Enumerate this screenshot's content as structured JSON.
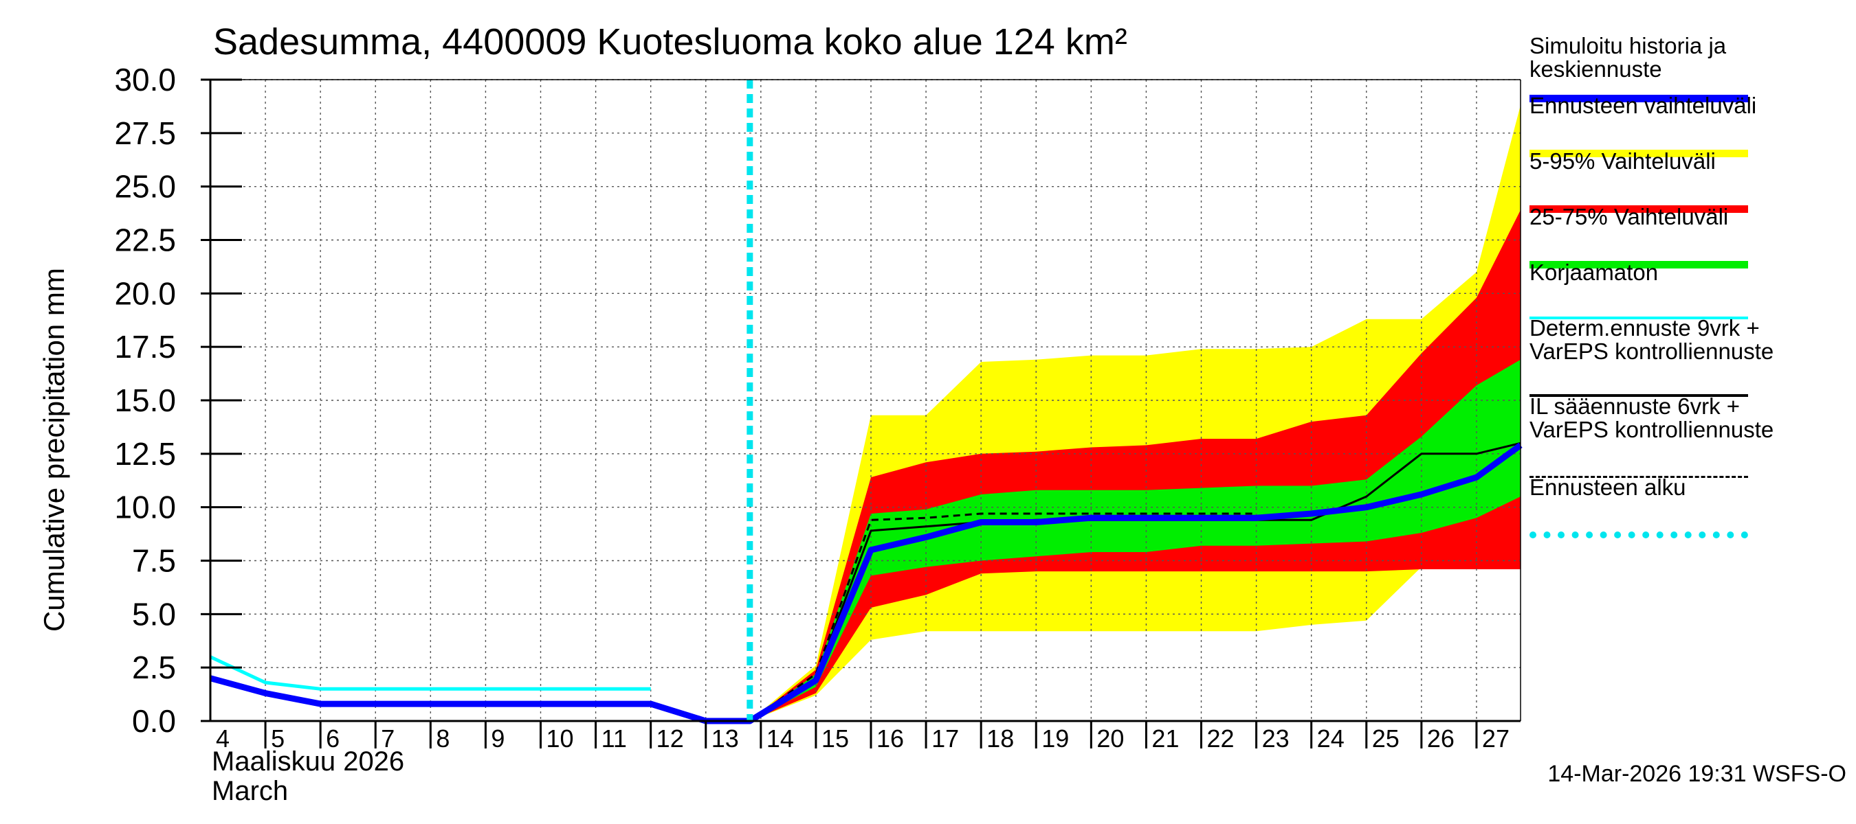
{
  "title": "Sadesumma, 4400009 Kuotesluoma koko alue 124 km²",
  "y_axis_label": "Cumulative precipitation   mm",
  "month_label_fi": "Maaliskuu 2026",
  "month_label_en": "March",
  "timestamp": "14-Mar-2026 19:31 WSFS-O",
  "colors": {
    "simulated": "#0000ff",
    "full_range": "#ffff00",
    "range_5_95": "#ff0000",
    "range_25_75": "#00ee00",
    "uncorrected": "#00ffff",
    "deterministic": "#000000",
    "forecast_start": "#00e5ee"
  },
  "legend": [
    {
      "label": "Simuloitu historia ja\nkeskiennuste",
      "style": "thick",
      "color": "#0000ff"
    },
    {
      "label": "Ennusteen vaihteluväli",
      "style": "thick",
      "color": "#ffff00"
    },
    {
      "label": "5-95% Vaihteluväli",
      "style": "thick",
      "color": "#ff0000"
    },
    {
      "label": "25-75% Vaihteluväli",
      "style": "thick",
      "color": "#00ee00"
    },
    {
      "label": "Korjaamaton",
      "style": "thin",
      "color": "#00ffff"
    },
    {
      "label": "Determ.ennuste 9vrk +\nVarEPS kontrolliennuste",
      "style": "thin",
      "color": "#000000"
    },
    {
      "label": "IL sääennuste 6vrk  +\nVarEPS kontrolliennuste",
      "style": "dashed",
      "color": "#000000"
    },
    {
      "label": "Ennusteen alku",
      "style": "dotted-thick",
      "color": "#00e5ee"
    }
  ],
  "chart_data": {
    "type": "line",
    "title": "Sadesumma, 4400009 Kuotesluoma koko alue 124 km²",
    "xlabel": "Maaliskuu 2026 March",
    "ylabel": "Cumulative precipitation   mm",
    "x_unit": "day of March 2026",
    "xlim": [
      4,
      27.8
    ],
    "ylim": [
      0,
      30
    ],
    "x_tick_labels": [
      "4",
      "5",
      "6",
      "7",
      "8",
      "9",
      "10",
      "11",
      "12",
      "13",
      "14",
      "15",
      "16",
      "17",
      "18",
      "19",
      "20",
      "21",
      "22",
      "23",
      "24",
      "25",
      "26",
      "27"
    ],
    "y_tick_labels": [
      "0.0",
      "2.5",
      "5.0",
      "7.5",
      "10.0",
      "12.5",
      "15.0",
      "17.5",
      "20.0",
      "22.5",
      "25.0",
      "27.5",
      "30.0"
    ],
    "grid": true,
    "forecast_start": 13.8,
    "series": [
      {
        "name": "Simuloitu historia ja keskiennuste",
        "x": [
          4,
          5,
          6,
          7,
          8,
          9,
          10,
          11,
          12,
          13,
          13.8,
          15,
          16,
          17,
          18,
          19,
          20,
          21,
          22,
          23,
          24,
          25,
          26,
          27,
          27.8
        ],
        "y": [
          2.0,
          1.3,
          0.8,
          0.8,
          0.8,
          0.8,
          0.8,
          0.8,
          0.8,
          0.0,
          0.0,
          1.9,
          8.0,
          8.6,
          9.3,
          9.3,
          9.5,
          9.5,
          9.5,
          9.5,
          9.7,
          10.0,
          10.6,
          11.4,
          12.9
        ]
      },
      {
        "name": "Korjaamaton",
        "x": [
          4,
          5,
          6,
          7,
          8,
          9,
          10,
          11,
          12
        ],
        "y": [
          3.0,
          1.8,
          1.5,
          1.5,
          1.5,
          1.5,
          1.5,
          1.5,
          1.5
        ]
      },
      {
        "name": "Determ.ennuste 9vrk + VarEPS kontrolliennuste",
        "x": [
          13.8,
          15,
          16,
          17,
          18,
          19,
          20,
          21,
          22,
          23,
          24,
          25,
          26,
          27,
          27.8
        ],
        "y": [
          0.0,
          2.0,
          8.9,
          9.1,
          9.3,
          9.4,
          9.4,
          9.4,
          9.4,
          9.4,
          9.4,
          10.5,
          12.5,
          12.5,
          13.0
        ]
      },
      {
        "name": "IL sääennuste 6vrk + VarEPS kontrolliennuste",
        "x": [
          13.8,
          15,
          16,
          17,
          18,
          19,
          20,
          21,
          22,
          23
        ],
        "y": [
          0.0,
          2.2,
          9.4,
          9.5,
          9.7,
          9.7,
          9.7,
          9.7,
          9.7,
          9.7
        ]
      }
    ],
    "bands": [
      {
        "name": "Ennusteen vaihteluväli",
        "x": [
          13.8,
          15,
          16,
          17,
          18,
          19,
          20,
          21,
          22,
          23,
          24,
          25,
          26,
          27,
          27.8
        ],
        "low": [
          0.0,
          1.2,
          3.8,
          4.2,
          4.2,
          4.2,
          4.2,
          4.2,
          4.2,
          4.2,
          4.5,
          4.7,
          7.2,
          7.2,
          7.2
        ],
        "high": [
          0.0,
          2.6,
          14.3,
          14.3,
          16.8,
          16.9,
          17.1,
          17.1,
          17.4,
          17.4,
          17.5,
          18.8,
          18.8,
          21.0,
          28.8
        ]
      },
      {
        "name": "5-95% Vaihteluväli",
        "x": [
          13.8,
          15,
          16,
          17,
          18,
          19,
          20,
          21,
          22,
          23,
          24,
          25,
          26,
          27,
          27.8
        ],
        "low": [
          0.0,
          1.3,
          5.3,
          5.9,
          6.9,
          7.0,
          7.0,
          7.0,
          7.0,
          7.0,
          7.0,
          7.0,
          7.1,
          7.1,
          7.1
        ],
        "high": [
          0.0,
          2.4,
          11.4,
          12.1,
          12.5,
          12.6,
          12.8,
          12.9,
          13.2,
          13.2,
          14.0,
          14.3,
          17.2,
          19.8,
          23.9
        ]
      },
      {
        "name": "25-75% Vaihteluväli",
        "x": [
          13.8,
          15,
          16,
          17,
          18,
          19,
          20,
          21,
          22,
          23,
          24,
          25,
          26,
          27,
          27.8
        ],
        "low": [
          0.0,
          1.6,
          6.8,
          7.2,
          7.5,
          7.7,
          7.9,
          7.9,
          8.2,
          8.2,
          8.3,
          8.4,
          8.8,
          9.5,
          10.5
        ],
        "high": [
          0.0,
          2.2,
          9.7,
          9.9,
          10.6,
          10.8,
          10.8,
          10.8,
          10.9,
          11.0,
          11.0,
          11.3,
          13.3,
          15.7,
          16.9
        ]
      }
    ]
  }
}
